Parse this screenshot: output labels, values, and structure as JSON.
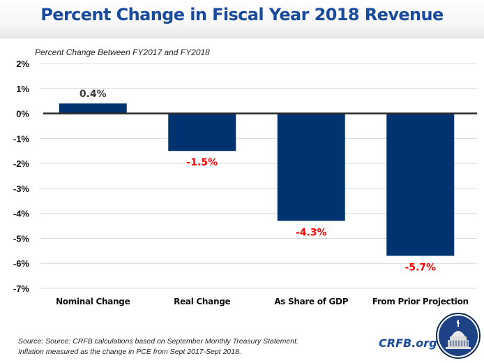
{
  "header": {
    "title": "Percent Change in Fiscal Year 2018 Revenue"
  },
  "chart_data": {
    "type": "bar",
    "title": "Percent Change in Fiscal Year 2018 Revenue",
    "subtitle": "Percent Change Between FY2017 and FY2018",
    "xlabel": "",
    "ylabel": "",
    "categories": [
      "Nominal Change",
      "Real Change",
      "As Share of GDP",
      "From Prior Projection"
    ],
    "values": [
      0.4,
      -1.5,
      -4.3,
      -5.7
    ],
    "data_labels": [
      "0.4%",
      "-1.5%",
      "-4.3%",
      "-5.7%"
    ],
    "ylim": [
      -7,
      2
    ],
    "yticks": [
      2,
      1,
      0,
      -1,
      -2,
      -3,
      -4,
      -5,
      -6,
      -7
    ],
    "ytick_labels": [
      "2%",
      "1%",
      "0%",
      "-1%",
      "-2%",
      "-3%",
      "-4%",
      "-5%",
      "-6%",
      "-7%"
    ],
    "grid": true,
    "legend": "none",
    "colors": {
      "bar": "#003370",
      "positive_label": "#3a3a3a",
      "negative_label": "#ff0000",
      "grid": "#d9d9d9",
      "zero_line": "#2b2b2b"
    }
  },
  "footer": {
    "source_line1": "Source: Source: CRFB calculations based on September Monthly Treasury Statement.",
    "source_line2": "Inflation measured as the change in PCE from Sept 2017-Sept 2018.",
    "brand": "CRFB.org",
    "logo_icon": "capitol-dome-logo-icon"
  }
}
